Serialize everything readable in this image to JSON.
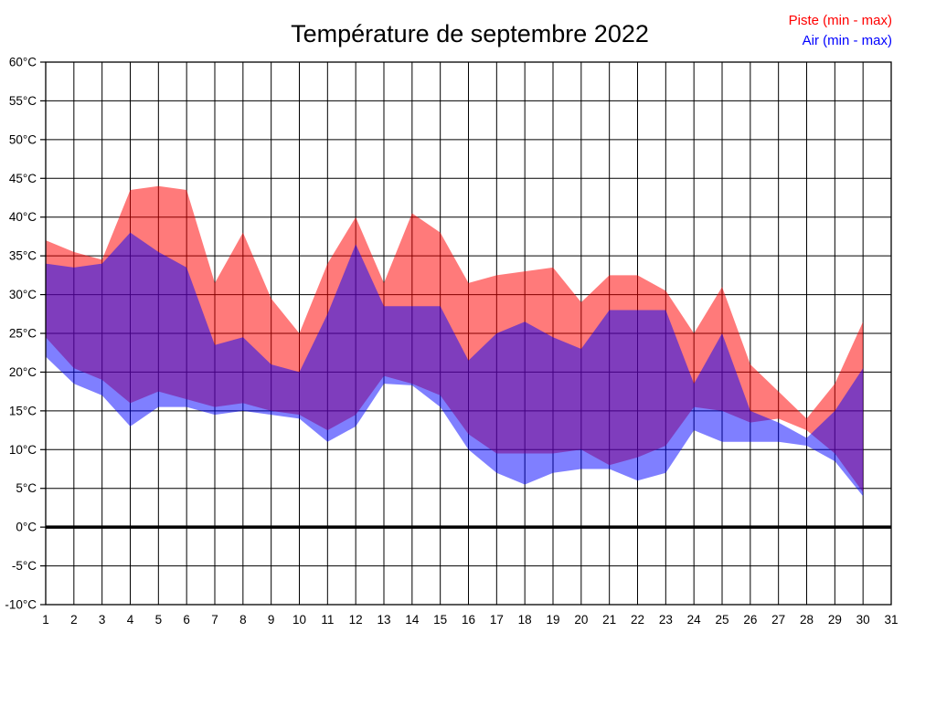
{
  "title": "Température de septembre 2022",
  "legend": [
    {
      "label": "Piste (min - max)",
      "color": "#ff0000"
    },
    {
      "label": "Air (min - max)",
      "color": "#0000ff"
    }
  ],
  "chart_data": {
    "type": "area",
    "title": "Température de septembre 2022",
    "xlabel": "",
    "ylabel": "",
    "xlim": [
      1,
      31
    ],
    "ylim": [
      -10,
      60
    ],
    "grid": true,
    "legend_position": "top-right",
    "x_ticks": [
      1,
      2,
      3,
      4,
      5,
      6,
      7,
      8,
      9,
      10,
      11,
      12,
      13,
      14,
      15,
      16,
      17,
      18,
      19,
      20,
      21,
      22,
      23,
      24,
      25,
      26,
      27,
      28,
      29,
      30,
      31
    ],
    "y_ticks": [
      {
        "value": -10,
        "label": "-10°C"
      },
      {
        "value": -5,
        "label": "-5°C"
      },
      {
        "value": 0,
        "label": "0°C"
      },
      {
        "value": 5,
        "label": "5°C"
      },
      {
        "value": 10,
        "label": "10°C"
      },
      {
        "value": 15,
        "label": "15°C"
      },
      {
        "value": 20,
        "label": "20°C"
      },
      {
        "value": 25,
        "label": "25°C"
      },
      {
        "value": 30,
        "label": "30°C"
      },
      {
        "value": 35,
        "label": "35°C"
      },
      {
        "value": 40,
        "label": "40°C"
      },
      {
        "value": 45,
        "label": "45°C"
      },
      {
        "value": 50,
        "label": "50°C"
      },
      {
        "value": 55,
        "label": "55°C"
      },
      {
        "value": 60,
        "label": "60°C"
      }
    ],
    "zero_line": 0,
    "x": [
      1,
      2,
      3,
      4,
      5,
      6,
      7,
      8,
      9,
      10,
      11,
      12,
      13,
      14,
      15,
      16,
      17,
      18,
      19,
      20,
      21,
      22,
      23,
      24,
      25,
      26,
      27,
      28,
      29,
      30
    ],
    "series": [
      {
        "name": "Piste (min - max)",
        "key": "piste",
        "color": "#ff0000",
        "opacity": 0.52,
        "max": [
          37,
          35.5,
          34.5,
          43.5,
          44,
          43.5,
          31.5,
          38,
          29.5,
          25,
          34,
          40,
          31.5,
          40.5,
          38,
          31.5,
          32.5,
          33,
          33.5,
          29,
          32.5,
          32.5,
          30.5,
          25,
          31,
          21,
          17.5,
          14,
          18.5,
          26.5
        ],
        "min": [
          24.5,
          20.5,
          19,
          16,
          17.5,
          16.5,
          15.5,
          16,
          15,
          14.5,
          12.5,
          14.5,
          19.5,
          18.5,
          17,
          12,
          9.5,
          9.5,
          9.5,
          10,
          8,
          9,
          10.5,
          15.5,
          15,
          13.5,
          14,
          12.5,
          9.5,
          4.5
        ]
      },
      {
        "name": "Air (min - max)",
        "key": "air",
        "color": "#0000ff",
        "opacity": 0.5,
        "max": [
          34,
          33.5,
          34,
          38,
          35.5,
          33.5,
          23.5,
          24.5,
          21,
          20,
          27.5,
          36.5,
          28.5,
          28.5,
          28.5,
          21.5,
          25,
          26.5,
          24.5,
          23,
          28,
          28,
          28,
          18.5,
          25,
          15,
          13.5,
          11.5,
          15,
          20.5
        ],
        "min": [
          22,
          18.5,
          17,
          13,
          15.5,
          15.5,
          14.5,
          15,
          14.5,
          14,
          11,
          13,
          18.5,
          18.3,
          15.5,
          10,
          7,
          5.5,
          7,
          7.5,
          7.5,
          6,
          7,
          12.5,
          11,
          11,
          11,
          10.5,
          8.5,
          4
        ]
      }
    ]
  }
}
